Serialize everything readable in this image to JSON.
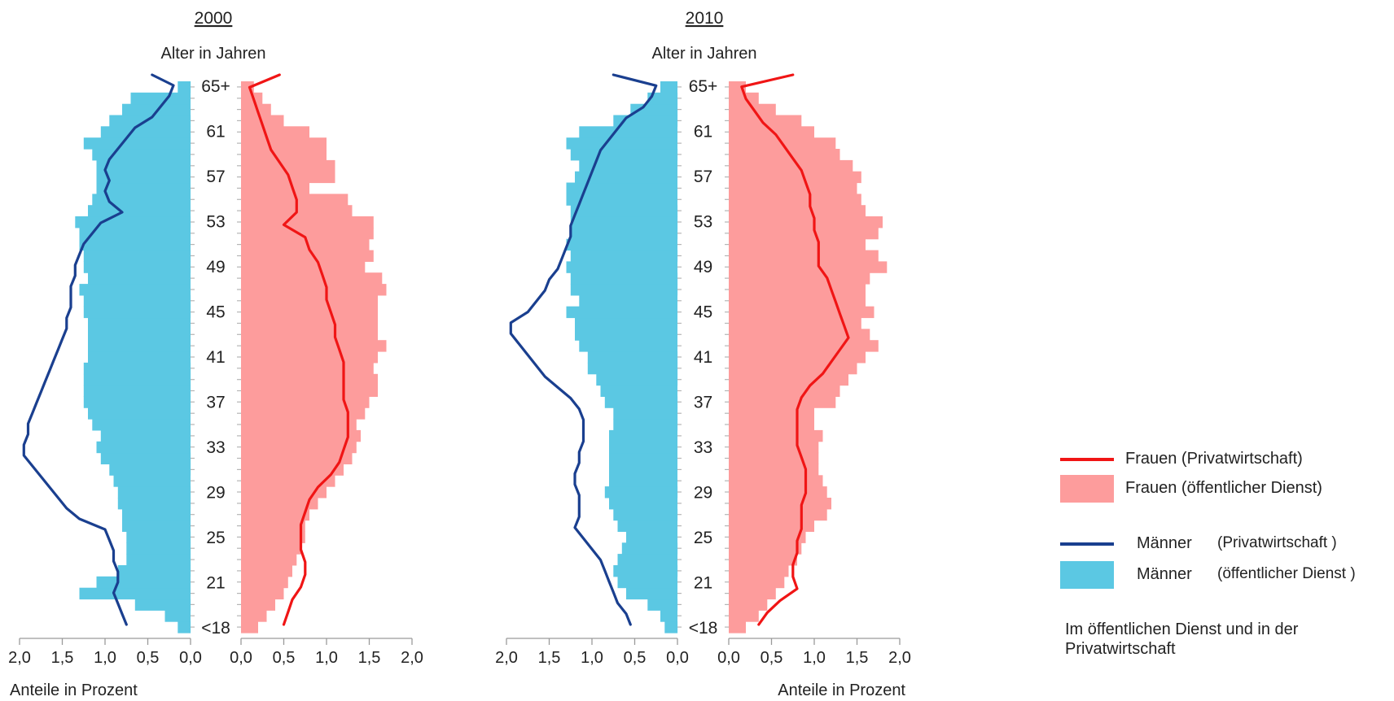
{
  "colors": {
    "men_bar": "#5bc8e3",
    "women_bar": "#fd9c9c",
    "men_line": "#1a3f8f",
    "women_line": "#f01515"
  },
  "legend": {
    "women_private": "Frauen (Privatwirtschaft)",
    "women_public": "Frauen (öffentlicher Dienst)",
    "men_private_a": "Männer",
    "men_private_b": "(Privatwirtschaft )",
    "men_public_a": "Männer",
    "men_public_b": "(öffentlicher Dienst )"
  },
  "note": {
    "line1": "Im öffentlichen Dienst und in der",
    "line2": "Privatwirtschaft"
  },
  "chart_data": [
    {
      "type": "bar",
      "title": "2000",
      "ylabel": "Alter in Jahren",
      "xlabel": "Anteile in Prozent",
      "age_ticks": [
        "<18",
        "21",
        "25",
        "29",
        "33",
        "37",
        "41",
        "45",
        "49",
        "53",
        "57",
        "61",
        "65+"
      ],
      "x_ticks": [
        "2,0",
        "1,5",
        "1,0",
        "0,5",
        "0,0"
      ],
      "xlim": [
        0,
        2.0
      ],
      "age_range": [
        17,
        65
      ],
      "series": [
        {
          "name": "Männer (öffentlicher Dienst)",
          "kind": "bar",
          "side": "left",
          "values": [
            0.15,
            0.3,
            0.65,
            1.3,
            1.1,
            0.85,
            0.75,
            0.75,
            0.75,
            0.8,
            0.8,
            0.85,
            0.85,
            0.9,
            0.95,
            1.05,
            1.1,
            1.05,
            1.15,
            1.2,
            1.25,
            1.25,
            1.25,
            1.25,
            1.2,
            1.2,
            1.2,
            1.2,
            1.25,
            1.25,
            1.3,
            1.2,
            1.25,
            1.25,
            1.3,
            1.3,
            1.35,
            1.2,
            1.15,
            1.1,
            1.1,
            1.1,
            1.15,
            1.25,
            1.05,
            0.95,
            0.8,
            0.7,
            0.15
          ]
        },
        {
          "name": "Frauen (öffentlicher Dienst)",
          "kind": "bar",
          "side": "right",
          "values": [
            0.2,
            0.3,
            0.4,
            0.5,
            0.55,
            0.6,
            0.65,
            0.7,
            0.75,
            0.75,
            0.8,
            0.9,
            1.0,
            1.1,
            1.2,
            1.3,
            1.35,
            1.4,
            1.35,
            1.45,
            1.5,
            1.6,
            1.6,
            1.55,
            1.6,
            1.7,
            1.6,
            1.6,
            1.6,
            1.6,
            1.7,
            1.65,
            1.45,
            1.55,
            1.5,
            1.55,
            1.55,
            1.3,
            1.25,
            0.8,
            1.1,
            1.1,
            1.0,
            1.0,
            0.8,
            0.5,
            0.35,
            0.25,
            0.15
          ]
        },
        {
          "name": "Männer (Privatwirtschaft)",
          "kind": "line",
          "side": "left",
          "values": [
            0.75,
            0.8,
            0.85,
            0.9,
            0.85,
            0.85,
            0.9,
            0.9,
            0.95,
            1.0,
            1.3,
            1.45,
            1.55,
            1.65,
            1.75,
            1.85,
            1.95,
            1.95,
            1.9,
            1.9,
            1.85,
            1.8,
            1.75,
            1.7,
            1.65,
            1.6,
            1.55,
            1.5,
            1.45,
            1.45,
            1.4,
            1.4,
            1.4,
            1.35,
            1.35,
            1.3,
            1.25,
            1.15,
            1.05,
            0.8,
            0.95,
            1.0,
            0.95,
            1.0,
            0.95,
            0.85,
            0.75,
            0.65,
            0.45,
            0.35,
            0.25,
            0.2,
            0.45
          ]
        },
        {
          "name": "Frauen (Privatwirtschaft)",
          "kind": "line",
          "side": "right",
          "values": [
            0.5,
            0.55,
            0.6,
            0.7,
            0.75,
            0.75,
            0.7,
            0.7,
            0.7,
            0.75,
            0.8,
            0.9,
            1.05,
            1.15,
            1.2,
            1.25,
            1.25,
            1.25,
            1.2,
            1.2,
            1.2,
            1.2,
            1.15,
            1.1,
            1.1,
            1.05,
            1.0,
            1.0,
            0.95,
            0.9,
            0.8,
            0.75,
            0.5,
            0.65,
            0.65,
            0.6,
            0.55,
            0.45,
            0.35,
            0.3,
            0.25,
            0.2,
            0.15,
            0.1,
            0.45
          ]
        }
      ]
    },
    {
      "type": "bar",
      "title": "2010",
      "ylabel": "Alter in Jahren",
      "xlabel": "Anteile in Prozent",
      "age_ticks": [
        "<18",
        "21",
        "25",
        "29",
        "33",
        "37",
        "41",
        "45",
        "49",
        "53",
        "57",
        "61",
        "65+"
      ],
      "x_ticks": [
        "2,0",
        "1,5",
        "1,0",
        "0,5",
        "0,0"
      ],
      "xlim": [
        0,
        2.0
      ],
      "age_range": [
        17,
        65
      ],
      "series": [
        {
          "name": "Männer (öffentlicher Dienst)",
          "kind": "bar",
          "side": "left",
          "values": [
            0.15,
            0.2,
            0.35,
            0.6,
            0.7,
            0.75,
            0.7,
            0.65,
            0.6,
            0.7,
            0.75,
            0.8,
            0.85,
            0.8,
            0.8,
            0.8,
            0.8,
            0.8,
            0.75,
            0.75,
            0.85,
            0.9,
            0.95,
            1.05,
            1.05,
            1.15,
            1.2,
            1.2,
            1.3,
            1.15,
            1.25,
            1.25,
            1.3,
            1.25,
            1.3,
            1.25,
            1.25,
            1.25,
            1.3,
            1.3,
            1.2,
            1.15,
            1.25,
            1.3,
            1.15,
            0.75,
            0.55,
            0.35,
            0.2
          ]
        },
        {
          "name": "Frauen (öffentlicher Dienst)",
          "kind": "bar",
          "side": "right",
          "values": [
            0.2,
            0.35,
            0.45,
            0.55,
            0.65,
            0.7,
            0.8,
            0.85,
            0.9,
            1.0,
            1.15,
            1.2,
            1.15,
            1.1,
            1.05,
            1.05,
            1.05,
            1.1,
            1.0,
            1.0,
            1.25,
            1.3,
            1.4,
            1.5,
            1.6,
            1.75,
            1.65,
            1.55,
            1.7,
            1.6,
            1.6,
            1.65,
            1.85,
            1.75,
            1.6,
            1.75,
            1.8,
            1.6,
            1.55,
            1.5,
            1.55,
            1.45,
            1.3,
            1.25,
            1.0,
            0.85,
            0.55,
            0.35,
            0.2
          ]
        },
        {
          "name": "Männer (Privatwirtschaft)",
          "kind": "line",
          "side": "left",
          "values": [
            0.55,
            0.6,
            0.7,
            0.75,
            0.8,
            0.85,
            0.9,
            1.0,
            1.1,
            1.2,
            1.15,
            1.15,
            1.15,
            1.2,
            1.2,
            1.15,
            1.15,
            1.1,
            1.1,
            1.1,
            1.15,
            1.25,
            1.4,
            1.55,
            1.65,
            1.75,
            1.85,
            1.95,
            1.95,
            1.75,
            1.65,
            1.55,
            1.5,
            1.4,
            1.35,
            1.3,
            1.25,
            1.25,
            1.2,
            1.15,
            1.1,
            1.05,
            1.0,
            0.95,
            0.9,
            0.8,
            0.7,
            0.6,
            0.4,
            0.3,
            0.25,
            0.75
          ]
        },
        {
          "name": "Frauen (Privatwirtschaft)",
          "kind": "line",
          "side": "right",
          "values": [
            0.35,
            0.45,
            0.6,
            0.8,
            0.75,
            0.75,
            0.8,
            0.8,
            0.85,
            0.85,
            0.85,
            0.9,
            0.9,
            0.9,
            0.85,
            0.8,
            0.8,
            0.8,
            0.8,
            0.85,
            0.95,
            1.1,
            1.2,
            1.3,
            1.4,
            1.35,
            1.3,
            1.25,
            1.2,
            1.15,
            1.05,
            1.05,
            1.05,
            1.0,
            1.0,
            0.95,
            0.95,
            0.9,
            0.85,
            0.75,
            0.65,
            0.55,
            0.4,
            0.3,
            0.2,
            0.15,
            0.75
          ]
        }
      ]
    }
  ]
}
